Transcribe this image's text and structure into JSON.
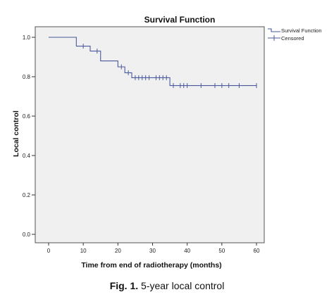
{
  "chart_data": {
    "type": "line",
    "title": "Survival Function",
    "xlabel": "Time from end of radiotherapy (months)",
    "ylabel": "Local control",
    "xlim": [
      0,
      60
    ],
    "ylim": [
      0.0,
      1.0
    ],
    "x_ticks": [
      "0",
      "10",
      "20",
      "30",
      "40",
      "50",
      "60"
    ],
    "y_ticks": [
      "0.0",
      "0.2",
      "0.4",
      "0.6",
      "0.8",
      "1.0"
    ],
    "grid": false,
    "legend_position": "top-right",
    "series": [
      {
        "name": "Survival Function",
        "style": "step",
        "color": "#4a5a9a",
        "points": [
          {
            "x": 0,
            "y": 1.0
          },
          {
            "x": 8,
            "y": 0.955
          },
          {
            "x": 12,
            "y": 0.93
          },
          {
            "x": 15,
            "y": 0.88
          },
          {
            "x": 20,
            "y": 0.85
          },
          {
            "x": 22,
            "y": 0.82
          },
          {
            "x": 24,
            "y": 0.795
          },
          {
            "x": 35,
            "y": 0.755
          },
          {
            "x": 60,
            "y": 0.755
          }
        ]
      },
      {
        "name": "Censored",
        "style": "marker",
        "color": "#4a5a9a",
        "points": [
          {
            "x": 10,
            "y": 0.955
          },
          {
            "x": 14,
            "y": 0.93
          },
          {
            "x": 21,
            "y": 0.85
          },
          {
            "x": 23,
            "y": 0.82
          },
          {
            "x": 25,
            "y": 0.795
          },
          {
            "x": 26,
            "y": 0.795
          },
          {
            "x": 27,
            "y": 0.795
          },
          {
            "x": 28,
            "y": 0.795
          },
          {
            "x": 29,
            "y": 0.795
          },
          {
            "x": 31,
            "y": 0.795
          },
          {
            "x": 32,
            "y": 0.795
          },
          {
            "x": 33,
            "y": 0.795
          },
          {
            "x": 34,
            "y": 0.795
          },
          {
            "x": 36,
            "y": 0.755
          },
          {
            "x": 38,
            "y": 0.755
          },
          {
            "x": 39,
            "y": 0.755
          },
          {
            "x": 40,
            "y": 0.755
          },
          {
            "x": 44,
            "y": 0.755
          },
          {
            "x": 48,
            "y": 0.755
          },
          {
            "x": 50,
            "y": 0.755
          },
          {
            "x": 52,
            "y": 0.755
          },
          {
            "x": 55,
            "y": 0.755
          },
          {
            "x": 60,
            "y": 0.755
          }
        ]
      }
    ]
  },
  "caption": {
    "label": "Fig. 1.",
    "text": " 5-year local control"
  }
}
